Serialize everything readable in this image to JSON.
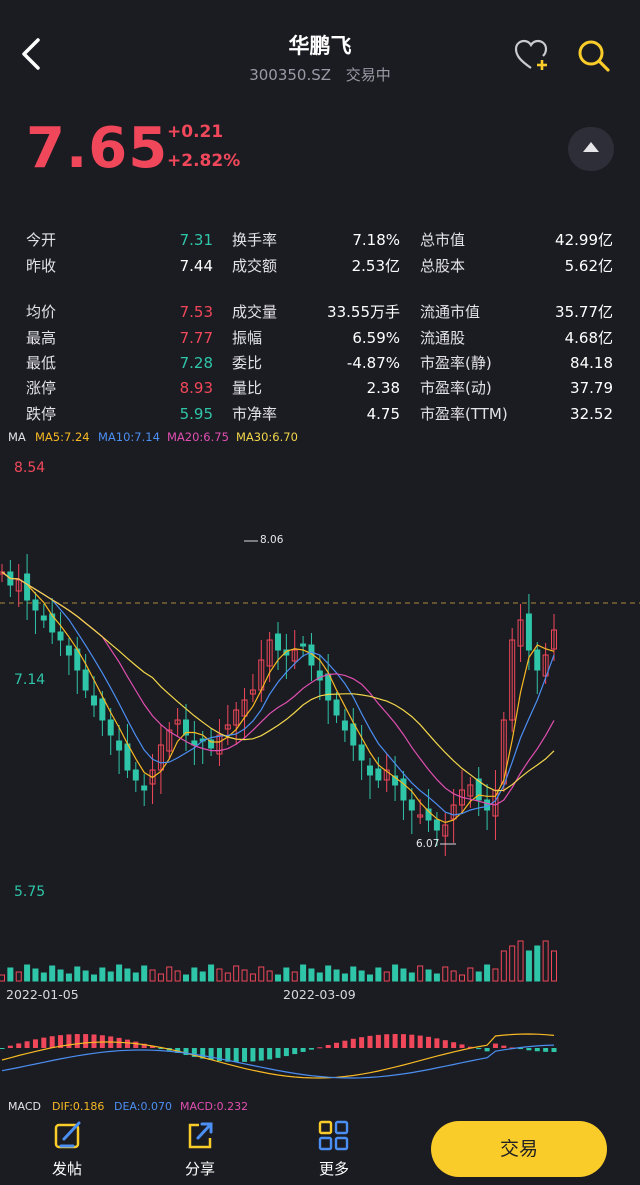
{
  "header": {
    "title": "华鹏飞",
    "code": "300350.SZ",
    "status": "交易中"
  },
  "quote": {
    "price": "7.65",
    "change": "+0.21",
    "change_pct": "+2.82%"
  },
  "stats": {
    "col1": [
      {
        "label": "今开",
        "value": "7.31",
        "color": "g"
      },
      {
        "label": "昨收",
        "value": "7.44",
        "color": "w"
      },
      {
        "label": "均价",
        "value": "7.53",
        "color": "r"
      },
      {
        "label": "最高",
        "value": "7.77",
        "color": "r"
      },
      {
        "label": "最低",
        "value": "7.28",
        "color": "g"
      },
      {
        "label": "涨停",
        "value": "8.93",
        "color": "r"
      },
      {
        "label": "跌停",
        "value": "5.95",
        "color": "g"
      }
    ],
    "col2": [
      {
        "label": "换手率",
        "value": "7.18%"
      },
      {
        "label": "成交额",
        "value": "2.53亿"
      },
      {
        "label": "成交量",
        "value": "33.55万手"
      },
      {
        "label": "振幅",
        "value": "6.59%"
      },
      {
        "label": "委比",
        "value": "-4.87%"
      },
      {
        "label": "量比",
        "value": "2.38"
      },
      {
        "label": "市净率",
        "value": "4.75"
      }
    ],
    "col3": [
      {
        "label": "总市值",
        "value": "42.99亿"
      },
      {
        "label": "总股本",
        "value": "5.62亿"
      },
      {
        "label": "流通市值",
        "value": "35.77亿"
      },
      {
        "label": "流通股",
        "value": "4.68亿"
      },
      {
        "label": "市盈率(静)",
        "value": "84.18"
      },
      {
        "label": "市盈率(动)",
        "value": "37.79"
      },
      {
        "label": "市盈率(TTM)",
        "value": "32.52"
      }
    ]
  },
  "ma_legend": {
    "ma": "MA",
    "ma5": "MA5:7.24",
    "ma10": "MA10:7.14",
    "ma20": "MA20:6.75",
    "ma30": "MA30:6.70"
  },
  "chart": {
    "y_top": "8.54",
    "y_mid": "7.14",
    "y_bottom": "5.75",
    "high_marker": "8.06",
    "low_marker": "6.07",
    "date_1": "2022-01-05",
    "date_2": "2022-03-09"
  },
  "macd_legend": {
    "macd": "MACD",
    "dif": "DIF:0.186",
    "dea": "DEA:0.070",
    "macd_val": "MACD:0.232"
  },
  "colors": {
    "up": "#f0485a",
    "down": "#2fc5a8",
    "ma5": "#f7b924",
    "ma10": "#4b8ff2",
    "ma20": "#e04fb0",
    "ma30": "#f2d64a",
    "accent": "#f9cc2a"
  },
  "bottom_bar": {
    "post": "发帖",
    "share": "分享",
    "more": "更多",
    "trade": "交易"
  },
  "icons": [
    "back-icon",
    "heart-plus-icon",
    "search-icon",
    "collapse-icon",
    "post-icon",
    "share-icon",
    "more-icon"
  ],
  "chart_data": {
    "type": "candlestick",
    "y_ticks": [
      8.54,
      7.14,
      5.75
    ],
    "labeled_high": 8.06,
    "labeled_low": 6.07,
    "last_close": 7.65,
    "ma": {
      "MA5": 7.24,
      "MA10": 7.14,
      "MA20": 6.75,
      "MA30": 6.7
    },
    "date_ticks": [
      "2022-01-05",
      "2022-03-09"
    ],
    "macd": {
      "DIF": 0.186,
      "DEA": 0.07,
      "MACD": 0.232
    }
  }
}
